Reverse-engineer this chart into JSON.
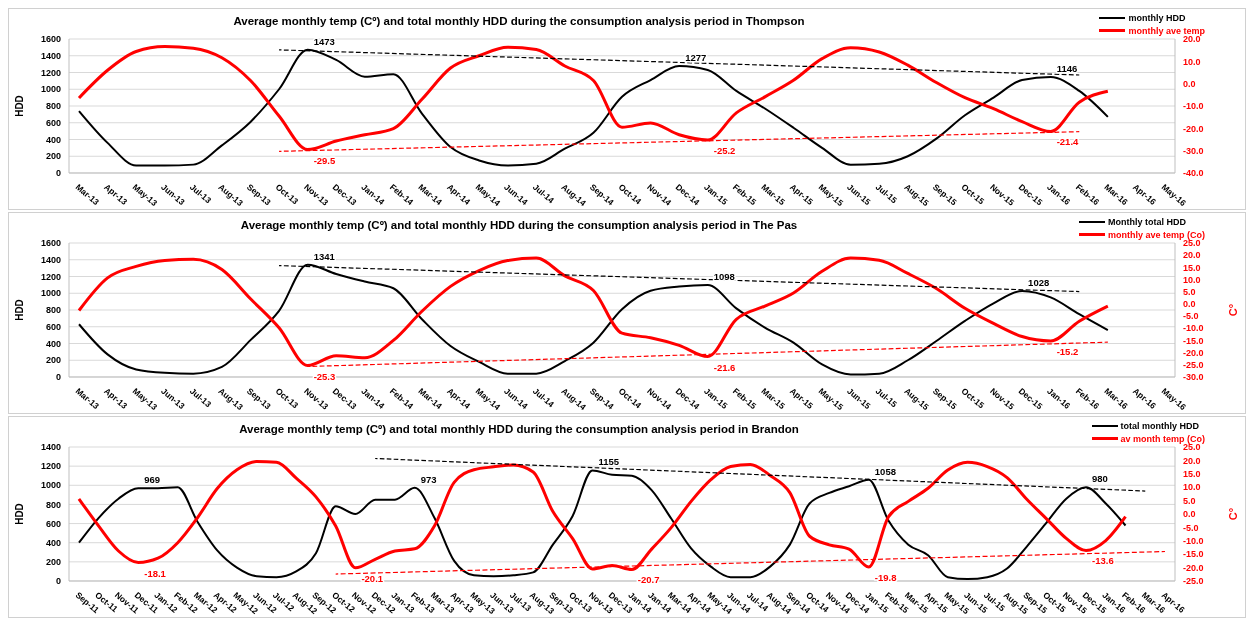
{
  "chart_data": [
    {
      "type": "line",
      "title": "Average monthly temp (Cº) and total monthly HDD during the consumption analysis period in Thompson",
      "ylabel": "HDD",
      "categories": [
        "Mar-13",
        "Apr-13",
        "May-13",
        "Jun-13",
        "Jul-13",
        "Aug-13",
        "Sep-13",
        "Oct-13",
        "Nov-13",
        "Dec-13",
        "Jan-14",
        "Feb-14",
        "Mar-14",
        "Apr-14",
        "May-14",
        "Jun-14",
        "Jul-14",
        "Aug-14",
        "Sep-14",
        "Oct-14",
        "Nov-14",
        "Dec-14",
        "Jan-15",
        "Feb-15",
        "Mar-15",
        "Apr-15",
        "May-15",
        "Jun-15",
        "Jul-15",
        "Aug-15",
        "Sep-15",
        "Oct-15",
        "Nov-15",
        "Dec-15",
        "Jan-16",
        "Feb-16",
        "Mar-16",
        "Apr-16",
        "May-16"
      ],
      "ylim": [
        0,
        1600
      ],
      "yticks": [
        0,
        200,
        400,
        600,
        800,
        1000,
        1200,
        1400,
        1600
      ],
      "y2lim": [
        -40,
        20
      ],
      "y2ticks": [
        {
          "value": -40,
          "label": "-40.0"
        },
        {
          "value": -30,
          "label": "-30.0"
        },
        {
          "value": -20,
          "label": "-20.0"
        },
        {
          "value": -10,
          "label": "-10.0"
        },
        {
          "value": 0,
          "label": "0.0"
        },
        {
          "value": 10,
          "label": "10.0"
        },
        {
          "value": 20,
          "label": "20.0"
        }
      ],
      "grid": "y",
      "legend": "top right",
      "marker": "none",
      "series": [
        {
          "name": "monthly HDD",
          "color": "#000000",
          "values": [
            740,
            360,
            90,
            90,
            100,
            330,
            610,
            1000,
            1473,
            1350,
            1150,
            1180,
            710,
            310,
            150,
            90,
            110,
            290,
            480,
            910,
            1110,
            1277,
            1230,
            980,
            770,
            540,
            300,
            100,
            110,
            200,
            410,
            690,
            900,
            1110,
            1146,
            980,
            670,
            null,
            null
          ],
          "value_labels": [
            null,
            null,
            null,
            null,
            null,
            null,
            null,
            null,
            "1473",
            null,
            null,
            null,
            null,
            null,
            null,
            null,
            null,
            null,
            null,
            null,
            null,
            "1277",
            null,
            null,
            null,
            null,
            null,
            null,
            null,
            null,
            null,
            null,
            null,
            null,
            "1146",
            null,
            null,
            null,
            null
          ]
        },
        {
          "name": "monthly ave temp",
          "color": "#ff0000",
          "axis": "y2",
          "values": [
            -6.4,
            6.0,
            14.4,
            16.6,
            15.9,
            11.6,
            1.4,
            -14.5,
            -29.5,
            -25.7,
            -22.9,
            -20.1,
            -7.0,
            7.0,
            12.5,
            16.3,
            15.3,
            7.9,
            1.4,
            -19.5,
            -17.6,
            -22.9,
            -25.2,
            -13.1,
            -5.9,
            1.5,
            11.2,
            16.1,
            14.2,
            8.3,
            0.5,
            -6.3,
            -11.2,
            -17.0,
            -21.4,
            -8.3,
            -3.4,
            null,
            null
          ],
          "value_labels": [
            null,
            null,
            null,
            null,
            null,
            null,
            null,
            null,
            "-29.5",
            null,
            null,
            null,
            null,
            null,
            null,
            null,
            null,
            null,
            null,
            null,
            null,
            null,
            "-25.2",
            null,
            null,
            null,
            null,
            null,
            null,
            null,
            null,
            null,
            null,
            null,
            "-21.4",
            null,
            null,
            null,
            null
          ]
        },
        {
          "type": "line",
          "color": "#000000",
          "line_style": "dashed",
          "values": [
            null,
            null,
            null,
            null,
            null,
            null,
            null,
            1470,
            null,
            null,
            null,
            null,
            null,
            null,
            null,
            null,
            null,
            null,
            null,
            null,
            null,
            null,
            null,
            null,
            null,
            null,
            null,
            null,
            null,
            null,
            null,
            null,
            null,
            null,
            null,
            1170,
            null,
            null,
            null
          ]
        },
        {
          "type": "line",
          "color": "#ff0000",
          "line_style": "dashed",
          "axis": "y2",
          "values": [
            null,
            null,
            null,
            null,
            null,
            null,
            null,
            -30.3,
            null,
            null,
            null,
            null,
            null,
            null,
            null,
            null,
            null,
            null,
            null,
            null,
            null,
            null,
            null,
            null,
            null,
            null,
            null,
            null,
            null,
            null,
            null,
            null,
            null,
            null,
            null,
            -21.5,
            null,
            null,
            null
          ]
        }
      ]
    },
    {
      "type": "line",
      "title": "Average monthly temp (Cº) and total monthly HDD during the consumption analysis period in The Pas",
      "ylabel": "HDD",
      "y2label": "C°",
      "categories": [
        "Mar-13",
        "Apr-13",
        "May-13",
        "Jun-13",
        "Jul-13",
        "Aug-13",
        "Sep-13",
        "Oct-13",
        "Nov-13",
        "Dec-13",
        "Jan-14",
        "Feb-14",
        "Mar-14",
        "Apr-14",
        "May-14",
        "Jun-14",
        "Jul-14",
        "Aug-14",
        "Sep-14",
        "Oct-14",
        "Nov-14",
        "Dec-14",
        "Jan-15",
        "Feb-15",
        "Mar-15",
        "Apr-15",
        "May-15",
        "Jun-15",
        "Jul-15",
        "Aug-15",
        "Sep-15",
        "Oct-15",
        "Nov-15",
        "Dec-15",
        "Jan-16",
        "Feb-16",
        "Mar-16",
        "Apr-16",
        "May-16"
      ],
      "ylim": [
        0,
        1600
      ],
      "yticks": [
        0,
        200,
        400,
        600,
        800,
        1000,
        1200,
        1400,
        1600
      ],
      "y2lim": [
        -30,
        25
      ],
      "y2ticks": [
        {
          "value": -30,
          "label": "-30.0"
        },
        {
          "value": -25,
          "label": "-25.0"
        },
        {
          "value": -20,
          "label": "-20.0"
        },
        {
          "value": -15,
          "label": "-15.0"
        },
        {
          "value": -10,
          "label": "-10.0"
        },
        {
          "value": -5,
          "label": "-5.0"
        },
        {
          "value": 0,
          "label": "0.0"
        },
        {
          "value": 5,
          "label": "5.0"
        },
        {
          "value": 10,
          "label": "10.0"
        },
        {
          "value": 15,
          "label": "15.0"
        },
        {
          "value": 20,
          "label": "20.0"
        },
        {
          "value": 25,
          "label": "25.0"
        }
      ],
      "grid": "y",
      "legend": "top right",
      "marker": "none",
      "series": [
        {
          "name": "Monthly total HDD",
          "color": "#000000",
          "values": [
            630,
            270,
            90,
            50,
            40,
            120,
            440,
            790,
            1341,
            1230,
            1140,
            1060,
            690,
            370,
            180,
            40,
            40,
            190,
            410,
            810,
            1030,
            1080,
            1098,
            820,
            590,
            410,
            150,
            30,
            40,
            200,
            430,
            670,
            880,
            1028,
            950,
            750,
            560,
            null,
            null
          ],
          "value_labels": [
            null,
            null,
            null,
            null,
            null,
            null,
            null,
            null,
            "1341",
            null,
            null,
            null,
            null,
            null,
            null,
            null,
            null,
            null,
            null,
            null,
            null,
            null,
            "1098",
            null,
            null,
            null,
            null,
            null,
            null,
            null,
            null,
            null,
            null,
            "1028",
            null,
            null,
            null,
            null,
            null
          ]
        },
        {
          "name": "monthly ave temp (Co)",
          "color": "#ff0000",
          "axis": "y2",
          "values": [
            -2.7,
            10.7,
            15.4,
            17.8,
            18.3,
            14.1,
            2.1,
            -9.8,
            -25.3,
            -21.3,
            -22.1,
            -15.0,
            -3.0,
            7.2,
            13.7,
            17.8,
            18.8,
            11.5,
            5.5,
            -12.0,
            -13.9,
            -17.0,
            -21.6,
            -6.3,
            -0.9,
            4.5,
            13.4,
            18.8,
            17.9,
            12.5,
            6.3,
            -1.8,
            -8.0,
            -13.4,
            -15.2,
            -7.1,
            -0.9,
            null,
            null
          ],
          "value_labels": [
            null,
            null,
            null,
            null,
            null,
            null,
            null,
            null,
            "-25.3",
            null,
            null,
            null,
            null,
            null,
            null,
            null,
            null,
            null,
            null,
            null,
            null,
            null,
            "-21.6",
            null,
            null,
            null,
            null,
            null,
            null,
            null,
            null,
            null,
            null,
            null,
            "-15.2",
            null,
            null,
            null,
            null
          ]
        },
        {
          "type": "line",
          "color": "#000000",
          "line_style": "dashed",
          "values": [
            null,
            null,
            null,
            null,
            null,
            null,
            null,
            1330,
            null,
            null,
            null,
            null,
            null,
            null,
            null,
            null,
            null,
            null,
            null,
            null,
            null,
            null,
            null,
            null,
            null,
            null,
            null,
            null,
            null,
            null,
            null,
            null,
            null,
            null,
            null,
            1020,
            null,
            null,
            null
          ]
        },
        {
          "type": "line",
          "color": "#ff0000",
          "line_style": "dashed",
          "axis": "y2",
          "values": [
            null,
            null,
            null,
            null,
            null,
            null,
            null,
            null,
            -25.7,
            null,
            null,
            null,
            null,
            null,
            null,
            null,
            null,
            null,
            null,
            null,
            null,
            null,
            null,
            null,
            null,
            null,
            null,
            null,
            null,
            null,
            null,
            null,
            null,
            null,
            null,
            null,
            -15.7,
            null,
            null
          ]
        }
      ]
    },
    {
      "type": "line",
      "title": "Average monthly temp (Cº) and total monthly HDD during the consumption analysis period in Brandon",
      "ylabel": "HDD",
      "y2label": "C°",
      "categories": [
        "Sep-11",
        "Oct-11",
        "Nov-11",
        "Dec-11",
        "Jan-12",
        "Feb-12",
        "Mar-12",
        "Apr-12",
        "May-12",
        "Jun-12",
        "Jul-12",
        "Aug-12",
        "Sep-12",
        "Oct-12",
        "Nov-12",
        "Dec-12",
        "Jan-13",
        "Feb-13",
        "Mar-13",
        "Apr-13",
        "May-13",
        "Jun-13",
        "Jul-13",
        "Aug-13",
        "Sep-13",
        "Oct-13",
        "Nov-13",
        "Dec-13",
        "Jan-14",
        "Jan-14",
        "Mar-14",
        "Apr-14",
        "May-14",
        "Jun-14",
        "Jul-14",
        "Aug-14",
        "Sep-14",
        "Oct-14",
        "Nov-14",
        "Dec-14",
        "Jan-15",
        "Feb-15",
        "Mar-15",
        "Apr-15",
        "May-15",
        "Jun-15",
        "Jul-15",
        "Aug-15",
        "Sep-15",
        "Oct-15",
        "Nov-15",
        "Dec-15",
        "Jan-16",
        "Feb-16",
        "Mar-16",
        "Apr-16"
      ],
      "ylim": [
        0,
        1400
      ],
      "yticks": [
        0,
        200,
        400,
        600,
        800,
        1000,
        1200,
        1400
      ],
      "y2lim": [
        -25,
        25
      ],
      "y2ticks": [
        {
          "value": -25,
          "label": "-25.0"
        },
        {
          "value": -20,
          "label": "-20.0"
        },
        {
          "value": -15,
          "label": "-15.0"
        },
        {
          "value": -10,
          "label": "-10.0"
        },
        {
          "value": -5,
          "label": "-5.0"
        },
        {
          "value": 0,
          "label": "0.0"
        },
        {
          "value": 5,
          "label": "5.0"
        },
        {
          "value": 10,
          "label": "10.0"
        },
        {
          "value": 15,
          "label": "15.0"
        },
        {
          "value": 20,
          "label": "20.0"
        },
        {
          "value": 25,
          "label": "25.0"
        }
      ],
      "grid": "y",
      "legend": "top right",
      "marker": "none",
      "series": [
        {
          "name": "total monthly HDD",
          "color": "#000000",
          "values": [
            400,
            660,
            860,
            969,
            970,
            980,
            620,
            320,
            140,
            50,
            40,
            100,
            290,
            780,
            700,
            850,
            850,
            973,
            660,
            210,
            60,
            50,
            60,
            90,
            380,
            680,
            1155,
            1110,
            1100,
            950,
            650,
            340,
            150,
            40,
            40,
            150,
            380,
            810,
            920,
            990,
            1058,
            630,
            380,
            270,
            40,
            20,
            40,
            130,
            360,
            610,
            860,
            980,
            810,
            580,
            null,
            null
          ],
          "value_labels": [
            null,
            null,
            null,
            "969",
            null,
            null,
            null,
            null,
            null,
            null,
            null,
            null,
            null,
            null,
            null,
            null,
            null,
            "973",
            null,
            null,
            null,
            null,
            null,
            null,
            null,
            null,
            "1155",
            null,
            null,
            null,
            null,
            null,
            null,
            null,
            null,
            null,
            null,
            null,
            null,
            null,
            "1058",
            null,
            null,
            null,
            null,
            null,
            null,
            null,
            null,
            null,
            null,
            "980",
            null,
            null,
            null,
            null
          ]
        },
        {
          "name": "av month temp (Co)",
          "color": "#ff0000",
          "axis": "y2",
          "values": [
            5.6,
            -4.5,
            -13.8,
            -18.1,
            -16.5,
            -10.7,
            -1.4,
            9.5,
            16.5,
            19.6,
            19.3,
            13.4,
            6.4,
            -4.5,
            -20.1,
            -16.9,
            -13.8,
            -13.0,
            -4.5,
            11.8,
            16.5,
            17.6,
            18.3,
            15.7,
            0.9,
            -9.2,
            -20.5,
            -19.2,
            -20.7,
            -13.1,
            -5.0,
            4.7,
            12.8,
            17.7,
            18.5,
            14.4,
            8.0,
            -8.3,
            -11.5,
            -13.1,
            -19.8,
            -1.0,
            4.7,
            9.6,
            16.4,
            19.3,
            17.7,
            13.6,
            5.5,
            -1.8,
            -9.1,
            -13.6,
            -9.9,
            -1.0,
            null,
            null
          ],
          "value_labels": [
            null,
            null,
            null,
            "-18.1",
            null,
            null,
            null,
            null,
            null,
            null,
            null,
            null,
            null,
            null,
            "-20.1",
            null,
            null,
            null,
            null,
            null,
            null,
            null,
            null,
            null,
            null,
            null,
            null,
            null,
            "-20.7",
            null,
            null,
            null,
            null,
            null,
            null,
            null,
            null,
            null,
            null,
            null,
            "-19.8",
            null,
            null,
            null,
            null,
            null,
            null,
            null,
            null,
            null,
            null,
            "-13.6",
            null,
            null,
            null,
            null
          ]
        },
        {
          "type": "line",
          "color": "#000000",
          "line_style": "dashed",
          "values": [
            null,
            null,
            null,
            null,
            null,
            null,
            null,
            null,
            null,
            null,
            null,
            null,
            null,
            null,
            null,
            1280,
            null,
            null,
            null,
            null,
            null,
            null,
            null,
            null,
            null,
            null,
            null,
            null,
            null,
            null,
            null,
            null,
            null,
            null,
            null,
            null,
            null,
            null,
            null,
            null,
            null,
            null,
            null,
            null,
            null,
            null,
            null,
            null,
            null,
            null,
            null,
            null,
            null,
            null,
            940,
            null
          ]
        },
        {
          "type": "line",
          "color": "#ff0000",
          "line_style": "dashed",
          "axis": "y2",
          "values": [
            null,
            null,
            null,
            null,
            null,
            null,
            null,
            null,
            null,
            null,
            null,
            null,
            null,
            -22.4,
            null,
            null,
            null,
            null,
            null,
            null,
            null,
            null,
            null,
            null,
            null,
            null,
            null,
            null,
            null,
            null,
            null,
            null,
            null,
            null,
            null,
            null,
            null,
            null,
            null,
            null,
            null,
            null,
            null,
            null,
            null,
            null,
            null,
            null,
            null,
            null,
            null,
            null,
            null,
            null,
            null,
            -14.0
          ]
        }
      ]
    }
  ]
}
